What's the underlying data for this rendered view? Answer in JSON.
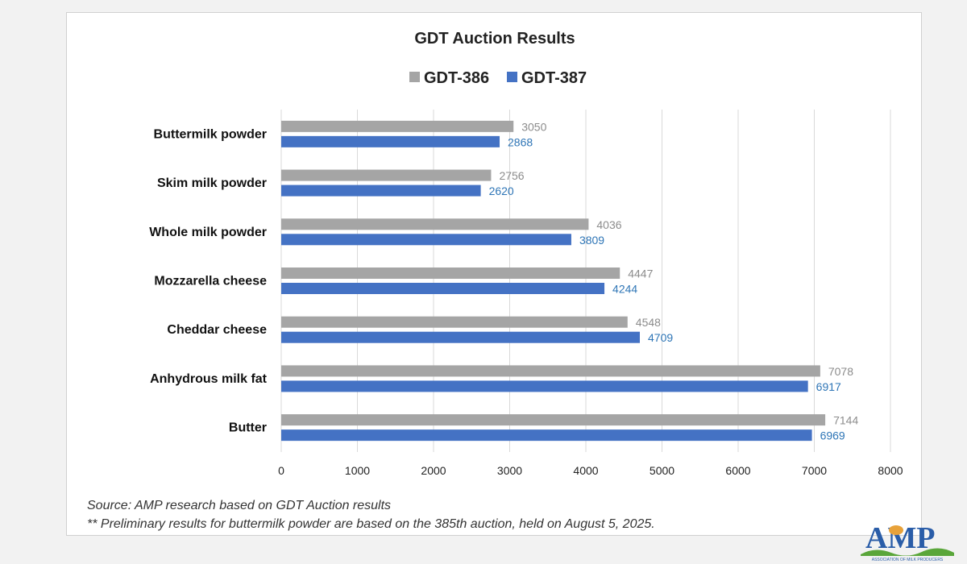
{
  "chart_data": {
    "type": "bar",
    "orientation": "horizontal",
    "title": "GDT Auction Results",
    "categories": [
      "Buttermilk powder",
      "Skim milk powder",
      "Whole milk powder",
      "Mozzarella cheese",
      "Cheddar cheese",
      "Anhydrous milk fat",
      "Butter"
    ],
    "series": [
      {
        "name": "GDT-386",
        "color": "#a5a5a5",
        "label_color": "#8c8c8c",
        "values": [
          3050,
          2756,
          4036,
          4447,
          4548,
          7078,
          7144
        ]
      },
      {
        "name": "GDT-387",
        "color": "#4472c4",
        "label_color": "#2e75b6",
        "values": [
          2868,
          2620,
          3809,
          4244,
          4709,
          6917,
          6969
        ]
      }
    ],
    "xlim": [
      0,
      8000
    ],
    "xticks": [
      0,
      1000,
      2000,
      3000,
      4000,
      5000,
      6000,
      7000,
      8000
    ],
    "xlabel": "",
    "ylabel": "",
    "grid": "vertical",
    "legend_position": "top-center"
  },
  "notes": {
    "source": "Source: AMP research based on GDT Auction results",
    "footnote": "** Preliminary results for buttermilk powder are based on the 385th auction, held on August 5, 2025."
  },
  "logo": {
    "text": "AMP",
    "subtitle": "ASSOCIATION OF MILK PRODUCERS"
  }
}
